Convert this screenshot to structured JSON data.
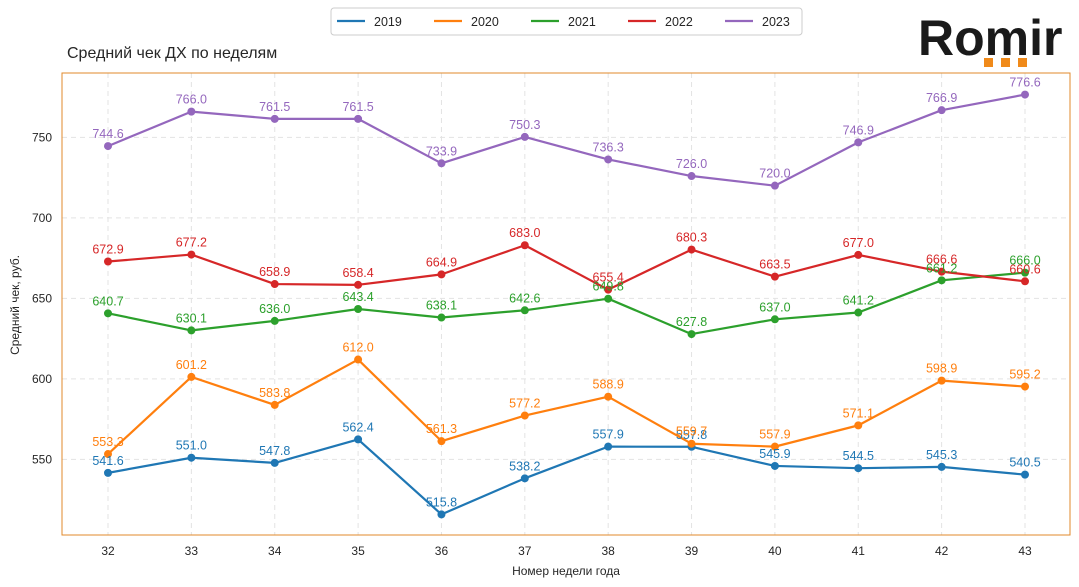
{
  "logo": {
    "text": "Romir",
    "dot_color": "#f08a1a"
  },
  "chart_data": {
    "type": "line",
    "title": "Средний чек ДХ по неделям",
    "xlabel": "Номер недели года",
    "ylabel": "Средний чек, руб.",
    "categories": [
      "32",
      "33",
      "34",
      "35",
      "36",
      "37",
      "38",
      "39",
      "40",
      "41",
      "42",
      "43"
    ],
    "ylim": [
      503,
      790
    ],
    "yticks": [
      550,
      600,
      650,
      700,
      750
    ],
    "grid": true,
    "legend_position": "top-center",
    "frame_color": "#e08a2b",
    "series": [
      {
        "name": "2019",
        "color": "#1f77b4",
        "values": [
          541.6,
          551.0,
          547.8,
          562.4,
          515.8,
          538.2,
          557.9,
          557.8,
          545.9,
          544.5,
          545.3,
          540.5
        ],
        "labels": [
          "541.6",
          "551.0",
          "547.8",
          "562.4",
          "515.8",
          "538.2",
          "557.9",
          "557.8",
          "545.9",
          "544.5",
          "545.3",
          "540.5"
        ]
      },
      {
        "name": "2020",
        "color": "#ff7f0e",
        "values": [
          553.3,
          601.2,
          583.8,
          612.0,
          561.3,
          577.2,
          588.9,
          559.7,
          557.9,
          571.1,
          598.9,
          595.2
        ],
        "labels": [
          "553.3",
          "601.2",
          "583.8",
          "612.0",
          "561.3",
          "577.2",
          "588.9",
          "559.7",
          "557.9",
          "571.1",
          "598.9",
          "595.2"
        ]
      },
      {
        "name": "2021",
        "color": "#2ca02c",
        "values": [
          640.7,
          630.1,
          636.0,
          643.4,
          638.1,
          642.6,
          649.8,
          627.8,
          637.0,
          641.2,
          661.2,
          666.0
        ],
        "labels": [
          "640.7",
          "630.1",
          "636.0",
          "643.4",
          "638.1",
          "642.6",
          "649.8",
          "627.8",
          "637.0",
          "641.2",
          "661.2",
          "666.0"
        ]
      },
      {
        "name": "2022",
        "color": "#d62728",
        "values": [
          672.9,
          677.2,
          658.9,
          658.4,
          664.9,
          683.0,
          655.4,
          680.3,
          663.5,
          677.0,
          666.6,
          660.6
        ],
        "labels": [
          "672.9",
          "677.2",
          "658.9",
          "658.4",
          "664.9",
          "683.0",
          "655.4",
          "680.3",
          "663.5",
          "677.0",
          "666.6",
          "660.6"
        ]
      },
      {
        "name": "2023",
        "color": "#9467bd",
        "values": [
          744.6,
          766.0,
          761.5,
          761.5,
          733.9,
          750.3,
          736.3,
          726.0,
          720.0,
          746.9,
          766.9,
          776.6
        ],
        "labels": [
          "744.6",
          "766.0",
          "761.5",
          "761.5",
          "733.9",
          "750.3",
          "736.3",
          "726.0",
          "720.0",
          "746.9",
          "766.9",
          "776.6"
        ]
      }
    ]
  }
}
